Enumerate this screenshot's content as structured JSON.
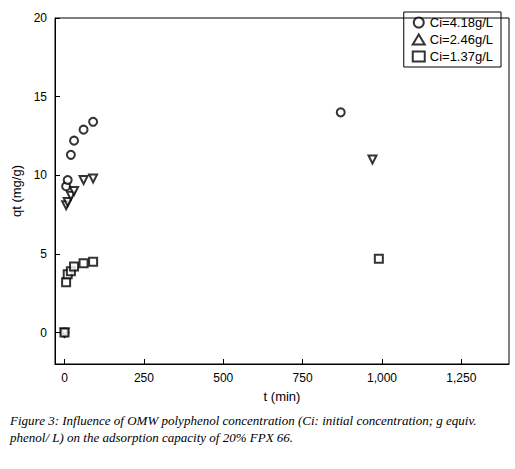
{
  "chart_data": {
    "type": "scatter",
    "x_label": "t (min)",
    "y_label": "qt (mg/g)",
    "caption": "Figure 3: Influence of OMW polyphenol concentration (Ci: initial concentration; g equiv. phenol/ L) on the adsorption capacity of 20% FPX 66.",
    "xlim": [
      -30,
      1400
    ],
    "xticks": [
      0,
      250,
      500,
      750,
      1000,
      1250
    ],
    "ylim": [
      -2,
      20
    ],
    "yticks": [
      0,
      5,
      10,
      15,
      20
    ],
    "grid": false,
    "legend": "top-right",
    "series": [
      {
        "name": "Ci=4.18g/L",
        "color": "#000000",
        "marker": "circle",
        "x": [
          0,
          5,
          10,
          20,
          30,
          60,
          90,
          870
        ],
        "values": [
          0,
          9.3,
          9.7,
          11.3,
          12.2,
          12.9,
          13.4,
          14.0
        ]
      },
      {
        "name": "Ci=2.46g/L",
        "color": "#000000",
        "marker": "triangle-down",
        "x": [
          0,
          5,
          10,
          20,
          30,
          60,
          90,
          970
        ],
        "values": [
          0,
          8.1,
          8.3,
          8.7,
          9.0,
          9.7,
          9.8,
          11.0
        ]
      },
      {
        "name": "Ci=1.37g/L",
        "color": "#000000",
        "marker": "square",
        "x": [
          0,
          5,
          10,
          20,
          30,
          60,
          90,
          990
        ],
        "values": [
          0,
          3.2,
          3.7,
          3.9,
          4.2,
          4.4,
          4.5,
          4.7
        ]
      }
    ]
  }
}
